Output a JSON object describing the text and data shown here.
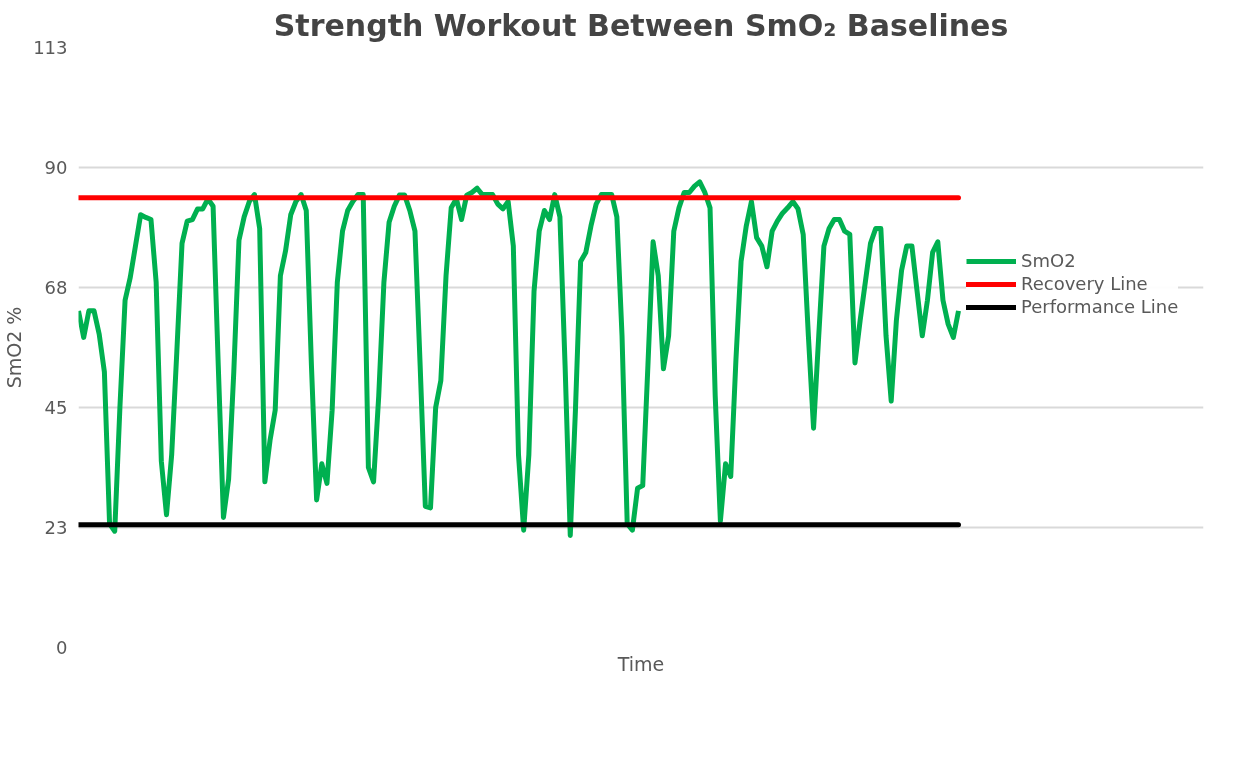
{
  "chart_data": {
    "type": "line",
    "title": "Strength Workout Between SmO₂ Baselines",
    "xlabel": "Time",
    "ylabel": "SmO2 %",
    "categories": [
      null,
      null,
      null,
      null,
      null,
      null,
      null,
      null,
      null,
      null,
      null,
      null,
      null,
      null,
      null,
      null,
      null,
      null,
      null,
      null,
      null,
      null,
      null,
      null,
      null,
      null,
      null,
      null,
      null,
      null,
      null,
      null,
      null,
      null,
      null,
      null,
      null,
      null,
      null,
      null,
      null,
      null,
      null,
      null,
      null,
      null,
      null,
      null,
      null,
      null,
      null,
      null,
      null,
      null,
      null,
      null,
      null,
      null,
      null,
      null,
      null,
      null,
      null,
      null,
      null,
      null,
      null,
      null,
      null,
      null,
      null,
      null,
      null,
      null,
      null,
      null,
      null,
      null,
      null,
      null,
      null,
      null,
      null,
      null,
      null,
      null,
      null,
      null,
      null,
      null,
      null,
      null,
      null,
      null,
      null,
      null,
      null,
      null,
      null,
      null,
      null,
      null,
      null,
      null,
      null,
      null,
      null,
      null,
      null,
      null,
      null,
      null,
      null,
      null,
      null,
      null,
      null,
      null,
      null,
      null,
      null,
      null,
      null,
      null,
      null,
      null,
      null,
      null,
      null,
      null,
      null,
      null,
      null,
      null,
      null,
      null,
      null,
      null,
      null,
      null,
      null,
      null,
      null,
      null,
      null,
      null,
      null,
      null,
      null,
      null,
      null,
      null,
      null,
      null,
      null,
      null,
      null,
      null,
      null,
      null,
      null,
      null,
      null,
      null,
      null,
      null,
      null,
      null,
      null,
      null,
      null
    ],
    "series": [
      {
        "name": "SmO2",
        "color": "#00b050",
        "values": [
          63.4,
          58.4,
          63.4,
          63.4,
          59.0,
          51.9,
          23.3,
          21.9,
          45.2,
          65.4,
          69.7,
          75.6,
          81.5,
          81.0,
          80.6,
          68.8,
          35.1,
          25.0,
          36.3,
          55.8,
          76.1,
          80.3,
          80.6,
          82.6,
          82.6,
          84.5,
          83.1,
          53.1,
          24.5,
          31.7,
          51.9,
          76.7,
          81.1,
          84.0,
          85.3,
          78.9,
          31.2,
          39.0,
          44.7,
          70.0,
          74.7,
          81.5,
          84.0,
          85.3,
          82.3,
          53.1,
          27.8,
          34.6,
          30.9,
          44.7,
          68.8,
          78.4,
          82.3,
          84.0,
          85.3,
          85.3,
          33.9,
          31.2,
          47.4,
          68.8,
          80.1,
          83.1,
          85.2,
          85.2,
          82.3,
          78.4,
          53.1,
          26.6,
          26.3,
          45.2,
          50.3,
          70.0,
          82.8,
          84.5,
          80.6,
          85.2,
          85.7,
          86.5,
          85.3,
          85.3,
          85.3,
          83.5,
          82.6,
          84.0,
          75.6,
          36.3,
          22.1,
          36.3,
          67.1,
          78.4,
          82.3,
          80.6,
          85.3,
          81.1,
          53.1,
          21.1,
          44.7,
          72.7,
          74.4,
          79.4,
          83.5,
          85.3,
          85.3,
          85.3,
          81.1,
          58.7,
          23.3,
          22.1,
          30.0,
          30.5,
          53.1,
          76.4,
          70.0,
          52.5,
          58.7,
          78.4,
          82.8,
          85.7,
          85.7,
          86.9,
          87.7,
          85.7,
          82.8,
          47.4,
          23.8,
          34.6,
          32.2,
          54.1,
          72.7,
          79.4,
          84.0,
          77.2,
          75.6,
          71.7,
          78.4,
          80.3,
          81.8,
          82.8,
          84.0,
          82.6,
          77.8,
          58.7,
          41.3,
          58.7,
          75.6,
          78.9,
          80.6,
          80.6,
          78.4,
          77.8,
          53.6,
          61.6,
          68.8,
          76.1,
          78.9,
          78.9,
          58.7,
          46.4,
          61.6,
          71.0,
          75.6,
          75.6,
          67.1,
          58.7,
          65.4,
          74.4,
          76.4,
          65.4,
          60.9,
          58.4,
          63.4
        ]
      }
    ],
    "ref_lines": [
      {
        "axis": "y",
        "value": 84.7,
        "label": "Recovery Line",
        "color": "#ff0000",
        "line_style": "solid"
      },
      {
        "axis": "y",
        "value": 23.1,
        "label": "Performance Line",
        "color": "#000000",
        "line_style": "solid"
      }
    ],
    "ylim": [
      0,
      113
    ],
    "yticks": [
      0,
      {
        "value": 22.6,
        "label": "23"
      },
      {
        "value": 45.2,
        "label": "45"
      },
      {
        "value": 67.8,
        "label": "68"
      },
      {
        "value": 90.4,
        "label": "90"
      },
      113
    ],
    "grid": "y",
    "legend": "right",
    "marker": "none",
    "line_style": "solid"
  }
}
